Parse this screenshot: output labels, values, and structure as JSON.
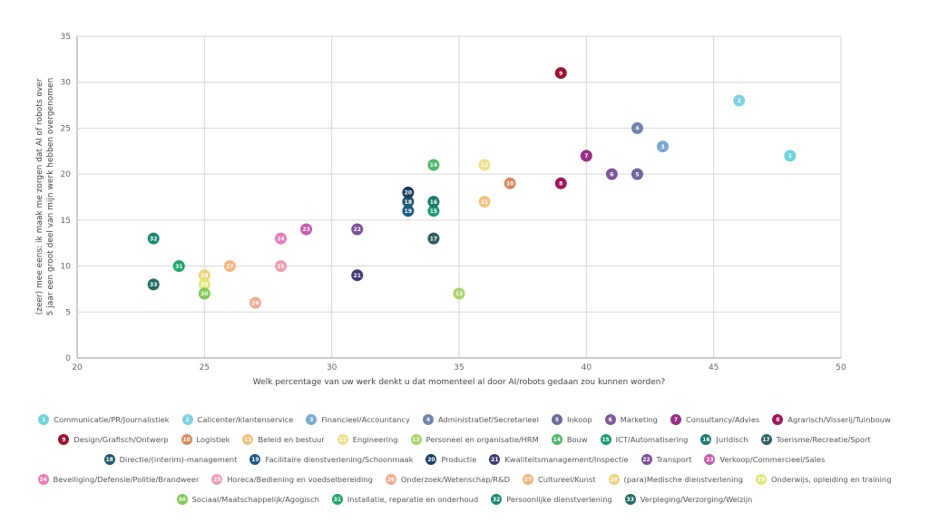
{
  "chart_data": {
    "type": "scatter",
    "title": "",
    "xlabel": "Welk percentage van uw werk denkt u dat momenteel al door AI/robots gedaan zou kunnen worden?",
    "ylabel_lines": [
      "(zeer) mee eens: ik maak me zorgen dat AI of robots over",
      "5 jaar een groot deel van mijn werk hebben overgenomen"
    ],
    "xlim": [
      20,
      50
    ],
    "ylim": [
      0,
      35
    ],
    "xticks": [
      "20",
      "25",
      "30",
      "35",
      "40",
      "45",
      "50"
    ],
    "yticks": [
      "0",
      "5",
      "10",
      "15",
      "20",
      "25",
      "30",
      "35"
    ],
    "grid": true,
    "legend_position": "bottom",
    "points": [
      {
        "id": "1",
        "name": "Communicatie/PR/Journalistiek",
        "x": 48,
        "y": 22,
        "color": "#6fd3dc"
      },
      {
        "id": "2",
        "name": "Callcenter/klantenservice",
        "x": 46,
        "y": 28,
        "color": "#7fd2e3"
      },
      {
        "id": "3",
        "name": "Financieel/Accountancy",
        "x": 43,
        "y": 23,
        "color": "#7aa9d4"
      },
      {
        "id": "4",
        "name": "Administratief/Secretarieel",
        "x": 42,
        "y": 25,
        "color": "#7084ad"
      },
      {
        "id": "5",
        "name": "Inkoop",
        "x": 42,
        "y": 20,
        "color": "#6e6a9e"
      },
      {
        "id": "6",
        "name": "Marketing",
        "x": 41,
        "y": 20,
        "color": "#7f5a9a"
      },
      {
        "id": "7",
        "name": "Consultancy/Advies",
        "x": 40,
        "y": 22,
        "color": "#9a2f86"
      },
      {
        "id": "8",
        "name": "Agrarisch/Visserij/Tuinbouw",
        "x": 39,
        "y": 19,
        "color": "#a0185a"
      },
      {
        "id": "9",
        "name": "Design/Grafisch/Ontwerp",
        "x": 39,
        "y": 31,
        "color": "#9c1330"
      },
      {
        "id": "10",
        "name": "Logistiek",
        "x": 37,
        "y": 19,
        "color": "#d88a5c"
      },
      {
        "id": "11",
        "name": "Beleid en bestuur",
        "x": 36,
        "y": 17,
        "color": "#f0c27f"
      },
      {
        "id": "12",
        "name": "Engineering",
        "x": 36,
        "y": 21,
        "color": "#efe08a"
      },
      {
        "id": "13",
        "name": "Personeel en organisatie/HRM",
        "x": 35,
        "y": 7,
        "color": "#a8d46b"
      },
      {
        "id": "14",
        "name": "Bouw",
        "x": 34,
        "y": 21,
        "color": "#4fb86a"
      },
      {
        "id": "15",
        "name": "ICT/Automatisering",
        "x": 34,
        "y": 16,
        "color": "#1c9a72"
      },
      {
        "id": "16",
        "name": "Juridisch",
        "x": 34,
        "y": 17,
        "color": "#1b7a6a"
      },
      {
        "id": "17",
        "name": "Toerisme/Recreatie/Sport",
        "x": 34,
        "y": 13,
        "color": "#2f5e5e"
      },
      {
        "id": "18",
        "name": "Directie/(interim)-management",
        "x": 33,
        "y": 17,
        "color": "#205a6e"
      },
      {
        "id": "19",
        "name": "Facilitaire dienstverlening/Schoonmaak",
        "x": 33,
        "y": 16,
        "color": "#1d5a86"
      },
      {
        "id": "20",
        "name": "Productie",
        "x": 33,
        "y": 18,
        "color": "#1b3e63"
      },
      {
        "id": "21",
        "name": "Kwaliteitsmanagement/Inspectie",
        "x": 31,
        "y": 9,
        "color": "#403a74"
      },
      {
        "id": "22",
        "name": "Transport",
        "x": 31,
        "y": 14,
        "color": "#7b4e97"
      },
      {
        "id": "23",
        "name": "Verkoop/Commercieel/Sales",
        "x": 29,
        "y": 14,
        "color": "#c55bb0"
      },
      {
        "id": "24",
        "name": "Beveiliging/Defensie/Politie/Brandweer",
        "x": 28,
        "y": 13,
        "color": "#e87bb8"
      },
      {
        "id": "25",
        "name": "Horeca/Bediening en voedselbereiding",
        "x": 28,
        "y": 10,
        "color": "#eb9db0"
      },
      {
        "id": "26",
        "name": "Onderzoek/Wetenschap/R&D",
        "x": 27,
        "y": 6,
        "color": "#f0a995"
      },
      {
        "id": "27",
        "name": "Cultureel/Kunst",
        "x": 26,
        "y": 10,
        "color": "#efb67e"
      },
      {
        "id": "28",
        "name": "(para)Medische dienstverlening",
        "x": 25,
        "y": 9,
        "color": "#ecd47a"
      },
      {
        "id": "29",
        "name": "Onderwijs, opleiding en training",
        "x": 25,
        "y": 8,
        "color": "#e2e77a"
      },
      {
        "id": "30",
        "name": "Sociaal/Maatschappelijk/Agogisch",
        "x": 25,
        "y": 7,
        "color": "#7ec955"
      },
      {
        "id": "31",
        "name": "Installatie, reparatie en onderhoud",
        "x": 24,
        "y": 10,
        "color": "#1fa56a"
      },
      {
        "id": "32",
        "name": "Persoonlijke dienstverlening",
        "x": 23,
        "y": 13,
        "color": "#1a8a73"
      },
      {
        "id": "33",
        "name": "Verpleging/Verzorging/Welzijn",
        "x": 23,
        "y": 8,
        "color": "#246b62"
      }
    ],
    "legend_rows": [
      [
        "1",
        "2",
        "3",
        "4",
        "5",
        "6",
        "7",
        "8"
      ],
      [
        "9",
        "10",
        "11",
        "12",
        "13",
        "14",
        "15",
        "16",
        "17"
      ],
      [
        "18",
        "19",
        "20",
        "21",
        "22",
        "23"
      ],
      [
        "24",
        "25",
        "26",
        "27",
        "28",
        "29"
      ],
      [
        "30",
        "31",
        "32",
        "33"
      ]
    ]
  }
}
